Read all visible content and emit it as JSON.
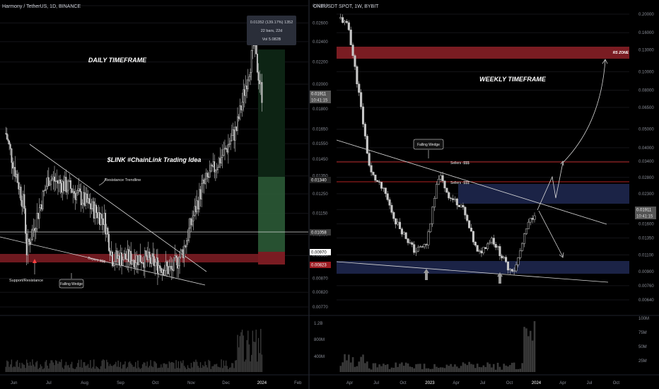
{
  "colors": {
    "background": "#000000",
    "candle": "#c8c8c8",
    "grid": "#141418",
    "divider": "#2a2e39",
    "red_zone": "#7a1c22",
    "red_line": "#b22222",
    "blue_zone": "#1b2346",
    "green_zone": "#2b5a36",
    "green_zone_dark": "#0d2414",
    "volume": "#3a3a3a",
    "axis_text": "#8a8e98",
    "annotation": "#e8e8e8"
  },
  "left_panel": {
    "header": "Harmony / TetherUS, 1D, BINANCE",
    "title": "DAILY TIMEFRAME",
    "idea_label": "$LINK #ChainLink Trading Idea",
    "tooltip": {
      "line1": "0.01352 (139.17%) 1352",
      "line2": "22 bars, 22d",
      "line3": "Vol 5.082B"
    },
    "annotations": {
      "resistance_trendline": "Resistance Trendline",
      "buyers": "Buyers $$$",
      "support_resistance": "Support/Resistance",
      "falling_wedge": "Falling Wedge"
    },
    "price_labels": [
      "0.02800",
      "0.02600",
      "0.02400",
      "0.02200",
      "0.02000",
      "0.01800",
      "0.01650",
      "0.01550",
      "0.01450",
      "0.01350",
      "0.01250",
      "0.01150",
      "0.01050",
      "0.00960",
      "0.00870",
      "0.00820",
      "0.00770"
    ],
    "badges": {
      "current_price": "0.01911",
      "countdown": "10:41:15",
      "target": "0.01340",
      "support": "0.01058",
      "entry": "0.00970",
      "stop": "0.00823"
    },
    "volume_labels": [
      "1.2B",
      "800M",
      "400M"
    ],
    "time_labels": [
      "Jun",
      "Jul",
      "Aug",
      "Sep",
      "Oct",
      "Nov",
      "Dec",
      "2024",
      "Feb"
    ]
  },
  "right_panel": {
    "header": "ONEUSDT SPOT, 1W, BYBIT",
    "title": "WEEKLY TIMEFRAME",
    "annotations": {
      "rs_zone": "RS ZONE",
      "falling_wedge": "Falling Wedge",
      "sellers_top": "Sellers -$$$",
      "sellers_mid": "Sellers -$$$"
    },
    "price_labels": [
      "0.20000",
      "0.16000",
      "0.13000",
      "0.10000",
      "0.08000",
      "0.06500",
      "0.05000",
      "0.04000",
      "0.03400",
      "0.02800",
      "0.02300",
      "0.01900",
      "0.01600",
      "0.01350",
      "0.01100",
      "0.00900",
      "0.00760",
      "0.00640"
    ],
    "badges": {
      "current_price": "0.01911",
      "countdown": "10:41:15"
    },
    "volume_labels": [
      "100M",
      "75M",
      "50M",
      "25M"
    ],
    "time_labels": [
      "Apr",
      "Jul",
      "Oct",
      "2023",
      "Apr",
      "Jul",
      "Oct",
      "2024",
      "Apr",
      "Jul",
      "Oct"
    ]
  },
  "chart_data": [
    {
      "type": "candlestick",
      "title": "Harmony / TetherUS, 1D, BINANCE",
      "xlabel": "",
      "ylabel": "",
      "ylim": [
        0.0077,
        0.028
      ],
      "log_scale": true,
      "x_range": [
        "2023-05-20",
        "2024-02-10"
      ],
      "series": [
        {
          "name": "",
          "key_points": [
            {
              "x": "2023-05-25",
              "y": 0.0162
            },
            {
              "x": "2023-06-10",
              "y": 0.0118
            },
            {
              "x": "2023-06-12",
              "y": 0.0098
            },
            {
              "x": "2023-07-01",
              "y": 0.0134
            },
            {
              "x": "2023-07-20",
              "y": 0.0128
            },
            {
              "x": "2023-08-18",
              "y": 0.0112
            },
            {
              "x": "2023-08-25",
              "y": 0.0095
            },
            {
              "x": "2023-09-20",
              "y": 0.0095
            },
            {
              "x": "2023-10-15",
              "y": 0.009
            },
            {
              "x": "2023-10-25",
              "y": 0.0098
            },
            {
              "x": "2023-11-10",
              "y": 0.0128
            },
            {
              "x": "2023-11-30",
              "y": 0.015
            },
            {
              "x": "2023-12-10",
              "y": 0.0165
            },
            {
              "x": "2023-12-25",
              "y": 0.0235
            },
            {
              "x": "2024-01-01",
              "y": 0.0191
            }
          ]
        }
      ],
      "levels": {
        "support_line": 0.01058,
        "buyers_zone": [
          0.0092,
          0.0097
        ],
        "target": 0.0134,
        "entry": 0.0097,
        "stop": 0.00823
      },
      "volume_axis": [
        "1.2B",
        "800M",
        "400M"
      ]
    },
    {
      "type": "candlestick",
      "title": "ONEUSDT SPOT, 1W, BYBIT",
      "xlabel": "",
      "ylabel": "",
      "ylim": [
        0.0064,
        0.2
      ],
      "log_scale": true,
      "x_range": [
        "2022-02-15",
        "2024-11-15"
      ],
      "series": [
        {
          "name": "",
          "key_points": [
            {
              "x": "2022-03-01",
              "y": 0.19
            },
            {
              "x": "2022-03-28",
              "y": 0.17
            },
            {
              "x": "2022-05-01",
              "y": 0.08
            },
            {
              "x": "2022-06-10",
              "y": 0.03
            },
            {
              "x": "2022-08-01",
              "y": 0.023
            },
            {
              "x": "2022-09-01",
              "y": 0.017
            },
            {
              "x": "2022-11-10",
              "y": 0.0115
            },
            {
              "x": "2022-12-20",
              "y": 0.0125
            },
            {
              "x": "2023-02-01",
              "y": 0.029
            },
            {
              "x": "2023-03-10",
              "y": 0.022
            },
            {
              "x": "2023-04-20",
              "y": 0.02
            },
            {
              "x": "2023-06-15",
              "y": 0.011
            },
            {
              "x": "2023-08-01",
              "y": 0.0135
            },
            {
              "x": "2023-09-25",
              "y": 0.0095
            },
            {
              "x": "2023-10-20",
              "y": 0.0092
            },
            {
              "x": "2023-12-01",
              "y": 0.0155
            },
            {
              "x": "2024-01-01",
              "y": 0.0191
            }
          ]
        }
      ],
      "levels": {
        "rs_zone": [
          0.125,
          0.145
        ],
        "sellers_top": 0.034,
        "sellers_mid": 0.026,
        "blue_zone_upper": [
          0.0205,
          0.025
        ],
        "blue_zone_lower": [
          0.0088,
          0.0097
        ]
      },
      "volume_axis": [
        "100M",
        "75M",
        "50M",
        "25M"
      ]
    }
  ]
}
